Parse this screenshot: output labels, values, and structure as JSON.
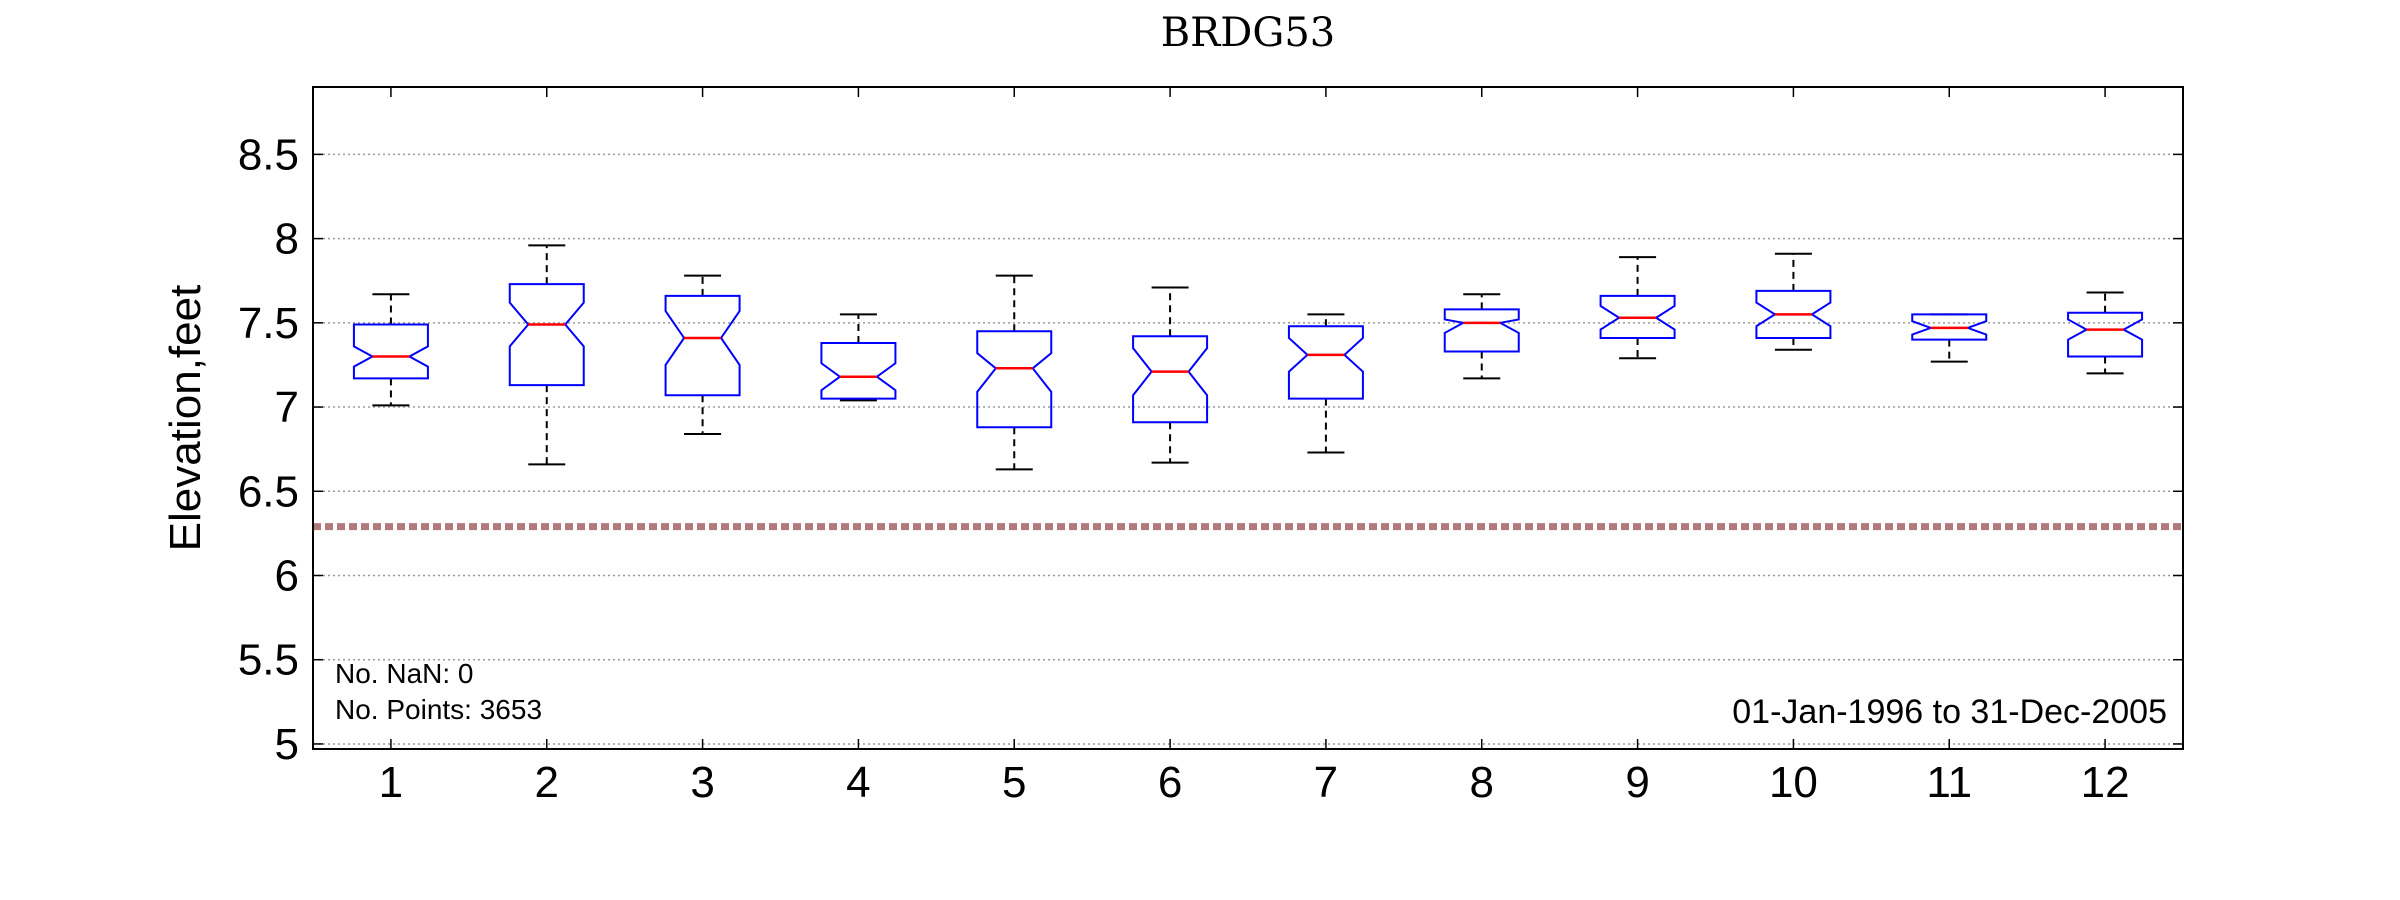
{
  "chart_data": {
    "type": "boxplot",
    "title": "BRDG53",
    "xlabel": "",
    "ylabel": "Elevation,feet",
    "ylim": [
      4.97,
      8.9
    ],
    "yticks": [
      "5",
      "5.5",
      "6",
      "6.5",
      "7",
      "7.5",
      "8",
      "8.5"
    ],
    "categories": [
      "1",
      "2",
      "3",
      "4",
      "5",
      "6",
      "7",
      "8",
      "9",
      "10",
      "11",
      "12"
    ],
    "grid": "horizontal dotted",
    "boxes": [
      {
        "category": "1",
        "whisker_low": 7.01,
        "q1": 7.17,
        "notch_low": 7.24,
        "median": 7.3,
        "notch_high": 7.36,
        "q3": 7.49,
        "whisker_high": 7.67
      },
      {
        "category": "2",
        "whisker_low": 6.66,
        "q1": 7.13,
        "notch_low": 7.36,
        "median": 7.49,
        "notch_high": 7.62,
        "q3": 7.73,
        "whisker_high": 7.96
      },
      {
        "category": "3",
        "whisker_low": 6.84,
        "q1": 7.07,
        "notch_low": 7.25,
        "median": 7.41,
        "notch_high": 7.57,
        "q3": 7.66,
        "whisker_high": 7.78
      },
      {
        "category": "4",
        "whisker_low": 7.04,
        "q1": 7.05,
        "notch_low": 7.1,
        "median": 7.18,
        "notch_high": 7.26,
        "q3": 7.38,
        "whisker_high": 7.55
      },
      {
        "category": "5",
        "whisker_low": 6.63,
        "q1": 6.88,
        "notch_low": 7.09,
        "median": 7.23,
        "notch_high": 7.32,
        "q3": 7.45,
        "whisker_high": 7.78
      },
      {
        "category": "6",
        "whisker_low": 6.67,
        "q1": 6.91,
        "notch_low": 7.07,
        "median": 7.21,
        "notch_high": 7.35,
        "q3": 7.42,
        "whisker_high": 7.71
      },
      {
        "category": "7",
        "whisker_low": 6.73,
        "q1": 7.05,
        "notch_low": 7.21,
        "median": 7.31,
        "notch_high": 7.41,
        "q3": 7.48,
        "whisker_high": 7.55
      },
      {
        "category": "8",
        "whisker_low": 7.17,
        "q1": 7.33,
        "notch_low": 7.44,
        "median": 7.5,
        "notch_high": 7.52,
        "q3": 7.58,
        "whisker_high": 7.67
      },
      {
        "category": "9",
        "whisker_low": 7.29,
        "q1": 7.41,
        "notch_low": 7.46,
        "median": 7.53,
        "notch_high": 7.6,
        "q3": 7.66,
        "whisker_high": 7.89
      },
      {
        "category": "10",
        "whisker_low": 7.34,
        "q1": 7.41,
        "notch_low": 7.48,
        "median": 7.55,
        "notch_high": 7.62,
        "q3": 7.69,
        "whisker_high": 7.91
      },
      {
        "category": "11",
        "whisker_low": 7.27,
        "q1": 7.4,
        "notch_low": 7.43,
        "median": 7.47,
        "notch_high": 7.51,
        "q3": 7.55,
        "whisker_high": 7.55
      },
      {
        "category": "12",
        "whisker_low": 7.2,
        "q1": 7.3,
        "notch_low": 7.4,
        "median": 7.46,
        "notch_high": 7.52,
        "q3": 7.56,
        "whisker_high": 7.68
      }
    ],
    "reference_line": {
      "y": 6.29,
      "style": "dashed",
      "color": "#b07a7a"
    },
    "annotations": {
      "nan_count": "No. NaN: 0",
      "points_count": "No. Points: 3653",
      "date_range": "01-Jan-1996 to 31-Dec-2005"
    },
    "colors": {
      "box": "#0000ff",
      "median": "#ff0000",
      "whisker": "#000000",
      "grid": "#9a9a9a",
      "reference": "#b07a7a"
    }
  }
}
